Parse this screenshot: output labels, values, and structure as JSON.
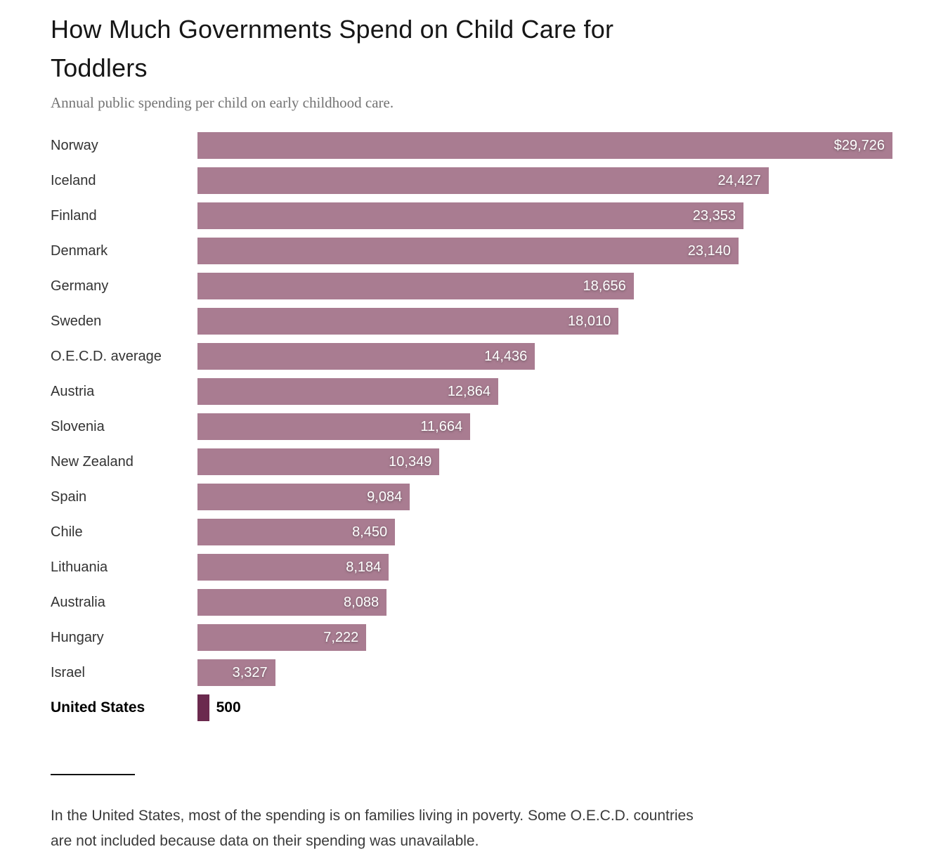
{
  "header": {
    "title_line1": "How Much Governments Spend on Child Care for",
    "title_line2": "Toddlers",
    "subtitle": "Annual public spending per child on early childhood care."
  },
  "chart_data": {
    "type": "bar",
    "orientation": "horizontal",
    "title": "How Much Governments Spend on Child Care for Toddlers",
    "subtitle": "Annual public spending per child on early childhood care.",
    "xlabel": "",
    "ylabel": "",
    "xlim": [
      0,
      29726
    ],
    "grid": false,
    "legend": false,
    "bar_color": "#a97c91",
    "highlight_bar_color": "#6b2a4e",
    "highlight_category": "United States",
    "categories": [
      "Norway",
      "Iceland",
      "Finland",
      "Denmark",
      "Germany",
      "Sweden",
      "O.E.C.D. average",
      "Austria",
      "Slovenia",
      "New Zealand",
      "Spain",
      "Chile",
      "Lithuania",
      "Australia",
      "Hungary",
      "Israel",
      "United States"
    ],
    "values": [
      29726,
      24427,
      23353,
      23140,
      18656,
      18010,
      14436,
      12864,
      11664,
      10349,
      9084,
      8450,
      8184,
      8088,
      7222,
      3327,
      500
    ],
    "bars": [
      {
        "label": "Norway",
        "value": 29726,
        "display": "$29,726",
        "value_position": "inside",
        "emphasis": false
      },
      {
        "label": "Iceland",
        "value": 24427,
        "display": "24,427",
        "value_position": "inside",
        "emphasis": false
      },
      {
        "label": "Finland",
        "value": 23353,
        "display": "23,353",
        "value_position": "inside",
        "emphasis": false
      },
      {
        "label": "Denmark",
        "value": 23140,
        "display": "23,140",
        "value_position": "inside",
        "emphasis": false
      },
      {
        "label": "Germany",
        "value": 18656,
        "display": "18,656",
        "value_position": "inside",
        "emphasis": false
      },
      {
        "label": "Sweden",
        "value": 18010,
        "display": "18,010",
        "value_position": "inside",
        "emphasis": false
      },
      {
        "label": "O.E.C.D. average",
        "value": 14436,
        "display": "14,436",
        "value_position": "inside",
        "emphasis": false
      },
      {
        "label": "Austria",
        "value": 12864,
        "display": "12,864",
        "value_position": "inside",
        "emphasis": false
      },
      {
        "label": "Slovenia",
        "value": 11664,
        "display": "11,664",
        "value_position": "inside",
        "emphasis": false
      },
      {
        "label": "New Zealand",
        "value": 10349,
        "display": "10,349",
        "value_position": "inside",
        "emphasis": false
      },
      {
        "label": "Spain",
        "value": 9084,
        "display": "9,084",
        "value_position": "inside",
        "emphasis": false
      },
      {
        "label": "Chile",
        "value": 8450,
        "display": "8,450",
        "value_position": "inside",
        "emphasis": false
      },
      {
        "label": "Lithuania",
        "value": 8184,
        "display": "8,184",
        "value_position": "inside",
        "emphasis": false
      },
      {
        "label": "Australia",
        "value": 8088,
        "display": "8,088",
        "value_position": "inside",
        "emphasis": false
      },
      {
        "label": "Hungary",
        "value": 7222,
        "display": "7,222",
        "value_position": "inside",
        "emphasis": false
      },
      {
        "label": "Israel",
        "value": 3327,
        "display": "3,327",
        "value_position": "inside",
        "emphasis": false
      },
      {
        "label": "United States",
        "value": 500,
        "display": "500",
        "value_position": "outside",
        "emphasis": true
      }
    ]
  },
  "footnote": {
    "line1": "In the United States, most of the spending is on families living in poverty. Some O.E.C.D. countries",
    "line2": "are not included because data on their spending was unavailable."
  }
}
